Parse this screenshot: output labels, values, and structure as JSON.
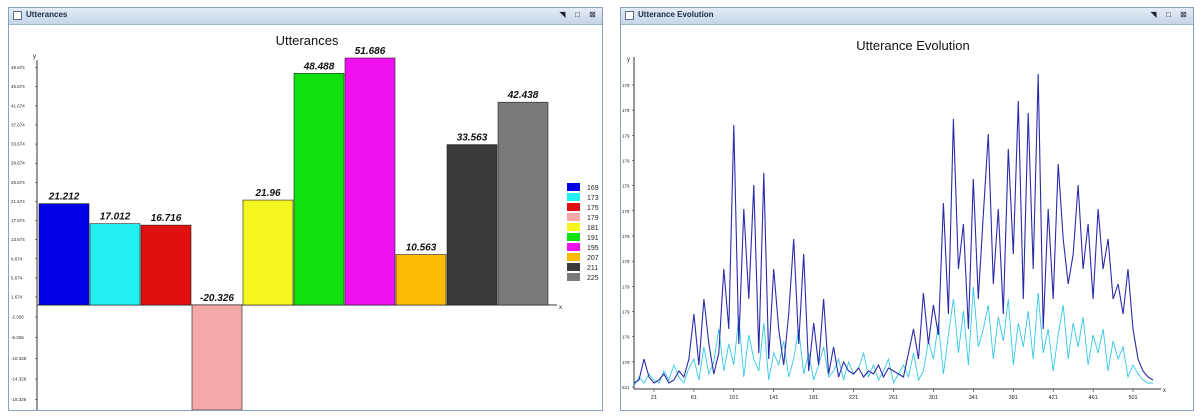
{
  "windows": [
    {
      "title": "Utterances",
      "buttons": [
        "restore-icon",
        "maximize-icon",
        "close-icon"
      ]
    },
    {
      "title": "Utterance Evolution",
      "buttons": [
        "restore-icon",
        "maximize-icon",
        "close-icon"
      ]
    }
  ],
  "chart_data": [
    {
      "type": "bar",
      "title": "Utterances",
      "xlabel": "",
      "ylabel": "",
      "x_axis_letter": "x",
      "y_axis_letter": "y",
      "categories": [
        "169",
        "173",
        "175",
        "179",
        "181",
        "191",
        "195",
        "207",
        "211",
        "225"
      ],
      "values": [
        21.212,
        17.012,
        16.716,
        -20.326,
        21.96,
        48.488,
        51.686,
        10.563,
        33.563,
        42.438
      ],
      "value_labels": [
        "21.212",
        "17.012",
        "16.716",
        "-20.326",
        "21.96",
        "48.488",
        "51.686",
        "10.563",
        "33.563",
        "42.438"
      ],
      "colors": [
        "#0000e6",
        "#22f0f0",
        "#e01010",
        "#f5a8a8",
        "#f5f520",
        "#10e010",
        "#ee10ee",
        "#fbbb00",
        "#3a3a3a",
        "#7a7a7a"
      ],
      "legend": [
        "169",
        "173",
        "175",
        "179",
        "181",
        "191",
        "195",
        "207",
        "211",
        "225"
      ],
      "legend_position": "right",
      "ylim": [
        -20.326,
        51.686
      ],
      "yticks": [
        "49.674",
        "45.674",
        "41.674",
        "37.674",
        "33.674",
        "29.674",
        "25.674",
        "21.674",
        "17.674",
        "13.674",
        "9.674",
        "5.674",
        "1.674",
        "-2.326",
        "-6.326",
        "-10.326",
        "-14.326",
        "-18.326"
      ],
      "grid": false
    },
    {
      "type": "line",
      "title": "Utterance Evolution",
      "xlabel": "",
      "ylabel": "",
      "x_axis_letter": "x",
      "y_axis_letter": "y",
      "xlim": [
        1,
        521
      ],
      "ylim": [
        0,
        100
      ],
      "xticks": [
        "21",
        "61",
        "101",
        "141",
        "181",
        "221",
        "261",
        "301",
        "341",
        "381",
        "421",
        "461",
        "501"
      ],
      "yticks": [
        "179",
        "179",
        "179",
        "179",
        "179",
        "179",
        "179",
        "179",
        "179",
        "179",
        "179",
        "179",
        "521"
      ],
      "grid": false,
      "series": [
        {
          "color": "#2b2ba8",
          "x": [
            1,
            6,
            11,
            16,
            21,
            26,
            31,
            36,
            41,
            46,
            51,
            56,
            61,
            66,
            71,
            76,
            81,
            86,
            91,
            96,
            101,
            106,
            111,
            116,
            121,
            126,
            131,
            136,
            141,
            146,
            151,
            156,
            161,
            166,
            171,
            176,
            181,
            186,
            191,
            196,
            201,
            206,
            211,
            216,
            221,
            226,
            231,
            236,
            241,
            246,
            251,
            256,
            261,
            266,
            271,
            276,
            281,
            286,
            291,
            296,
            301,
            306,
            311,
            316,
            321,
            326,
            331,
            336,
            341,
            346,
            351,
            356,
            361,
            366,
            371,
            376,
            381,
            386,
            391,
            396,
            401,
            406,
            411,
            416,
            421,
            426,
            431,
            436,
            441,
            446,
            451,
            456,
            461,
            466,
            471,
            476,
            481,
            486,
            491,
            496,
            501,
            506,
            511,
            516,
            521
          ],
          "y": [
            2,
            3,
            10,
            4,
            2,
            3,
            5,
            2,
            3,
            6,
            4,
            10,
            25,
            8,
            30,
            15,
            5,
            12,
            40,
            20,
            88,
            15,
            60,
            30,
            68,
            12,
            72,
            10,
            40,
            20,
            8,
            25,
            50,
            15,
            45,
            6,
            22,
            8,
            30,
            5,
            14,
            4,
            9,
            6,
            5,
            7,
            4,
            6,
            5,
            8,
            4,
            7,
            6,
            5,
            4,
            12,
            20,
            10,
            32,
            15,
            28,
            18,
            62,
            25,
            90,
            40,
            55,
            20,
            70,
            30,
            58,
            85,
            35,
            60,
            25,
            80,
            45,
            96,
            30,
            92,
            40,
            105,
            20,
            60,
            30,
            75,
            50,
            35,
            45,
            68,
            40,
            55,
            30,
            60,
            40,
            50,
            30,
            35,
            25,
            40,
            20,
            10,
            6,
            4,
            3
          ]
        },
        {
          "color": "#33c8e8",
          "x": [
            1,
            6,
            11,
            16,
            21,
            26,
            31,
            36,
            41,
            46,
            51,
            56,
            61,
            66,
            71,
            76,
            81,
            86,
            91,
            96,
            101,
            106,
            111,
            116,
            121,
            126,
            131,
            136,
            141,
            146,
            151,
            156,
            161,
            166,
            171,
            176,
            181,
            186,
            191,
            196,
            201,
            206,
            211,
            216,
            221,
            226,
            231,
            236,
            241,
            246,
            251,
            256,
            261,
            266,
            271,
            276,
            281,
            286,
            291,
            296,
            301,
            306,
            311,
            316,
            321,
            326,
            331,
            336,
            341,
            346,
            351,
            356,
            361,
            366,
            371,
            376,
            381,
            386,
            391,
            396,
            401,
            406,
            411,
            416,
            421,
            426,
            431,
            436,
            441,
            446,
            451,
            456,
            461,
            466,
            471,
            476,
            481,
            486,
            491,
            496,
            501,
            506,
            511,
            516,
            521
          ],
          "y": [
            1,
            4,
            2,
            5,
            3,
            2,
            6,
            3,
            8,
            4,
            2,
            7,
            10,
            3,
            14,
            5,
            9,
            20,
            6,
            15,
            8,
            24,
            4,
            18,
            10,
            6,
            22,
            3,
            12,
            8,
            16,
            4,
            10,
            20,
            5,
            12,
            3,
            8,
            14,
            4,
            6,
            10,
            3,
            9,
            5,
            7,
            12,
            4,
            8,
            3,
            6,
            10,
            2,
            5,
            8,
            4,
            12,
            3,
            6,
            16,
            10,
            22,
            5,
            18,
            30,
            12,
            26,
            8,
            34,
            14,
            20,
            28,
            10,
            24,
            16,
            30,
            8,
            22,
            14,
            26,
            10,
            32,
            12,
            20,
            6,
            18,
            28,
            10,
            22,
            14,
            24,
            8,
            18,
            12,
            20,
            6,
            16,
            10,
            14,
            4,
            8,
            5,
            3,
            2,
            2
          ]
        }
      ]
    }
  ]
}
